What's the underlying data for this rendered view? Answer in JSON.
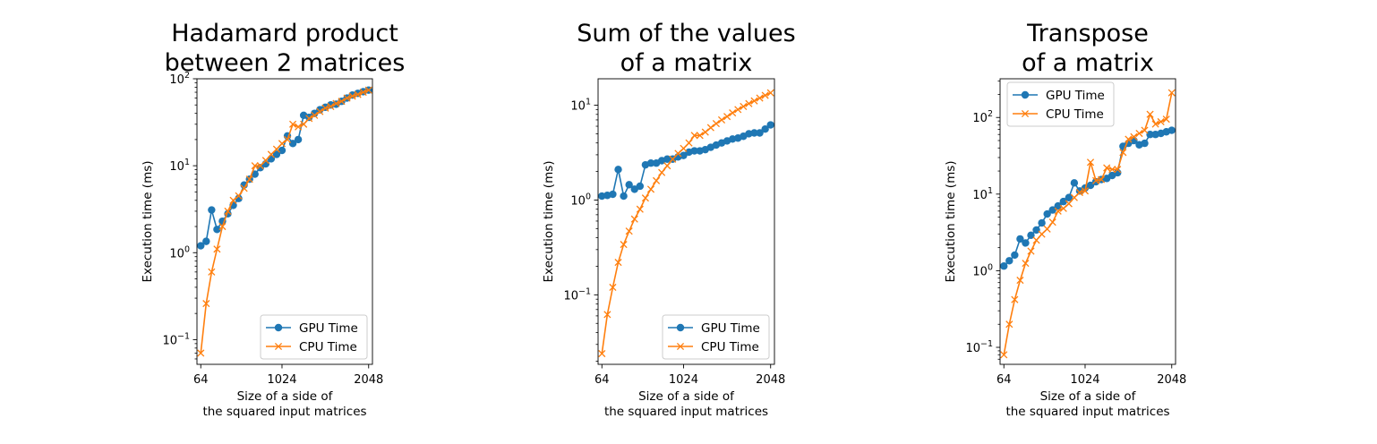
{
  "colors": {
    "gpu": "#1f77b4",
    "cpu": "#ff7f0e",
    "legend_border": "#cccccc"
  },
  "chart_data": [
    {
      "type": "line",
      "title": [
        "Hadamard product",
        "between 2 matrices"
      ],
      "xlabel": [
        "Size of a side of",
        "the squared input matrices"
      ],
      "ylabel": "Execution time (ms)",
      "yscale": "log",
      "xlim": [
        19,
        2093
      ],
      "ylim": [
        0.052,
        100
      ],
      "xticks": [
        64,
        1024,
        2048
      ],
      "yticks": [
        {
          "value": 0.1,
          "base": "10",
          "exp": "−1"
        },
        {
          "value": 1,
          "base": "10",
          "exp": "0"
        },
        {
          "value": 10,
          "base": "10",
          "exp": "1"
        },
        {
          "value": 100,
          "base": "10",
          "exp": "2"
        }
      ],
      "legend": "lower-right",
      "series": [
        {
          "name": "GPU Time",
          "marker": "circle",
          "x": [
            64,
            128,
            192,
            256,
            320,
            384,
            448,
            512,
            576,
            640,
            704,
            768,
            832,
            896,
            960,
            1024,
            1088,
            1152,
            1216,
            1280,
            1344,
            1408,
            1472,
            1536,
            1600,
            1664,
            1728,
            1792,
            1856,
            1920,
            1984,
            2048
          ],
          "y": [
            1.2,
            1.35,
            3.1,
            1.85,
            2.3,
            2.8,
            3.5,
            4.2,
            6.0,
            7.0,
            8.0,
            9.5,
            10.5,
            12.0,
            13.5,
            15.0,
            22.0,
            18.0,
            20.0,
            38.0,
            36.0,
            40.0,
            44.0,
            47.0,
            50.0,
            51.0,
            55.0,
            60.0,
            65.0,
            68.0,
            71.0,
            74.0
          ]
        },
        {
          "name": "CPU Time",
          "marker": "x",
          "x": [
            64,
            128,
            192,
            256,
            320,
            384,
            448,
            512,
            576,
            640,
            704,
            768,
            832,
            896,
            960,
            1024,
            1088,
            1152,
            1216,
            1280,
            1344,
            1408,
            1472,
            1536,
            1600,
            1664,
            1728,
            1792,
            1856,
            1920,
            1984,
            2048
          ],
          "y": [
            0.07,
            0.26,
            0.6,
            1.1,
            2.0,
            3.0,
            4.0,
            4.5,
            5.5,
            7.0,
            10.0,
            10.0,
            11.5,
            13.5,
            15.5,
            18.0,
            20.0,
            30.0,
            28.0,
            30.0,
            35.0,
            38.0,
            42.0,
            46.0,
            48.0,
            52.0,
            55.0,
            60.0,
            63.0,
            66.0,
            70.0,
            74.0
          ]
        }
      ]
    },
    {
      "type": "line",
      "title": [
        "Sum of the values",
        "of a matrix"
      ],
      "xlabel": [
        "Size of a side of",
        "the squared input matrices"
      ],
      "ylabel": "Execution time (ms)",
      "yscale": "log",
      "xlim": [
        19,
        2093
      ],
      "ylim": [
        0.0185,
        19
      ],
      "xticks": [
        64,
        1024,
        2048
      ],
      "yticks": [
        {
          "value": 0.1,
          "base": "10",
          "exp": "−1"
        },
        {
          "value": 1,
          "base": "10",
          "exp": "0"
        },
        {
          "value": 10,
          "base": "10",
          "exp": "1"
        }
      ],
      "legend": "lower-right",
      "series": [
        {
          "name": "GPU Time",
          "marker": "circle",
          "x": [
            64,
            128,
            192,
            256,
            320,
            384,
            448,
            512,
            576,
            640,
            704,
            768,
            832,
            896,
            960,
            1024,
            1088,
            1152,
            1216,
            1280,
            1344,
            1408,
            1472,
            1536,
            1600,
            1664,
            1728,
            1792,
            1856,
            1920,
            1984,
            2048
          ],
          "y": [
            1.1,
            1.12,
            1.15,
            2.1,
            1.1,
            1.45,
            1.3,
            1.4,
            2.35,
            2.45,
            2.45,
            2.6,
            2.7,
            2.7,
            2.85,
            2.95,
            3.2,
            3.3,
            3.3,
            3.4,
            3.6,
            3.8,
            4.0,
            4.2,
            4.4,
            4.5,
            4.7,
            5.0,
            5.1,
            5.1,
            5.6,
            6.2
          ]
        },
        {
          "name": "CPU Time",
          "marker": "x",
          "x": [
            64,
            128,
            192,
            256,
            320,
            384,
            448,
            512,
            576,
            640,
            704,
            768,
            832,
            896,
            960,
            1024,
            1088,
            1152,
            1216,
            1280,
            1344,
            1408,
            1472,
            1536,
            1600,
            1664,
            1728,
            1792,
            1856,
            1920,
            1984,
            2048
          ],
          "y": [
            0.024,
            0.062,
            0.12,
            0.22,
            0.34,
            0.47,
            0.63,
            0.8,
            1.05,
            1.3,
            1.6,
            1.95,
            2.3,
            2.7,
            3.1,
            3.5,
            4.0,
            4.8,
            4.8,
            5.2,
            5.8,
            6.4,
            7.0,
            7.6,
            8.3,
            9.0,
            9.7,
            10.4,
            11.1,
            11.9,
            12.7,
            13.5
          ]
        }
      ]
    },
    {
      "type": "line",
      "title": [
        "Transpose",
        "of a matrix"
      ],
      "xlabel": [
        "Size of a side of",
        "the squared input matrices"
      ],
      "ylabel": "Execution time (ms)",
      "yscale": "log",
      "xlim": [
        19,
        2093
      ],
      "ylim": [
        0.06,
        320
      ],
      "xticks": [
        64,
        1024,
        2048
      ],
      "yticks": [
        {
          "value": 0.1,
          "base": "10",
          "exp": "−1"
        },
        {
          "value": 1,
          "base": "10",
          "exp": "0"
        },
        {
          "value": 10,
          "base": "10",
          "exp": "1"
        },
        {
          "value": 100,
          "base": "10",
          "exp": "2"
        }
      ],
      "legend": "upper-left",
      "series": [
        {
          "name": "GPU Time",
          "marker": "circle",
          "x": [
            64,
            128,
            192,
            256,
            320,
            384,
            448,
            512,
            576,
            640,
            704,
            768,
            832,
            896,
            960,
            1024,
            1088,
            1152,
            1216,
            1280,
            1344,
            1408,
            1472,
            1536,
            1600,
            1664,
            1728,
            1792,
            1856,
            1920,
            1984,
            2048
          ],
          "y": [
            1.15,
            1.35,
            1.6,
            2.6,
            2.3,
            2.9,
            3.4,
            4.2,
            5.5,
            6.2,
            7.0,
            8.0,
            9.0,
            14.0,
            11.0,
            12.0,
            13.0,
            14.5,
            15.5,
            16.0,
            17.5,
            19.0,
            42.0,
            46.0,
            50.0,
            44.0,
            46.0,
            60.0,
            60.0,
            62.0,
            65.0,
            68.0
          ]
        },
        {
          "name": "CPU Time",
          "marker": "x",
          "x": [
            64,
            128,
            192,
            256,
            320,
            384,
            448,
            512,
            576,
            640,
            704,
            768,
            832,
            896,
            960,
            1024,
            1088,
            1152,
            1216,
            1280,
            1344,
            1408,
            1472,
            1536,
            1600,
            1664,
            1728,
            1792,
            1856,
            1920,
            1984,
            2048
          ],
          "y": [
            0.08,
            0.2,
            0.42,
            0.75,
            1.25,
            1.8,
            2.5,
            3.0,
            3.5,
            4.3,
            6.0,
            6.5,
            7.5,
            9.0,
            10.5,
            11.0,
            26.0,
            15.0,
            15.5,
            22.0,
            21.0,
            21.0,
            35.0,
            52.0,
            56.0,
            62.0,
            68.0,
            110.0,
            82.0,
            88.0,
            95.0,
            210.0
          ]
        }
      ]
    }
  ]
}
